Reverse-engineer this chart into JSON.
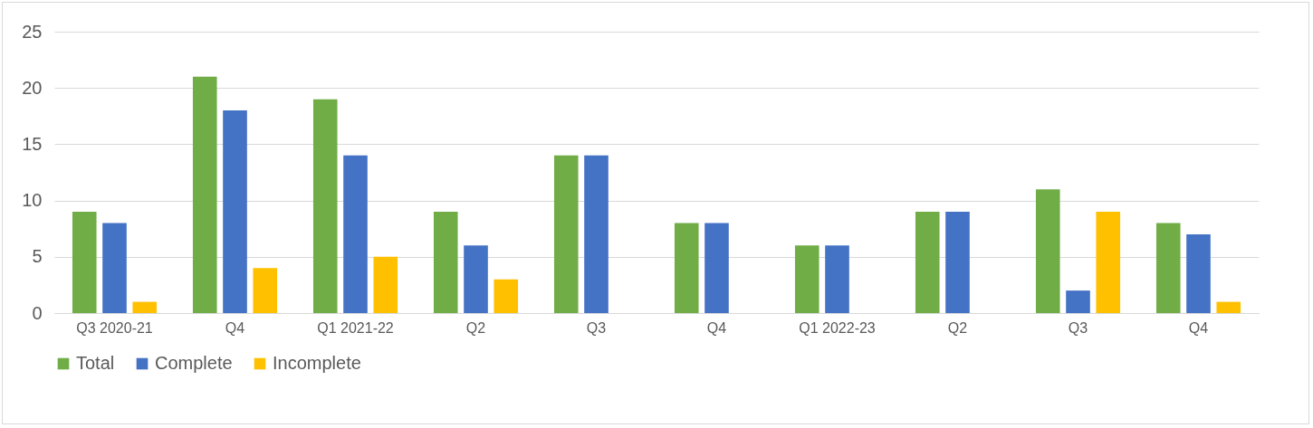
{
  "chart_data": {
    "type": "bar",
    "categories": [
      "Q3 2020-21",
      "Q4",
      "Q1 2021-22",
      "Q2",
      "Q3",
      "Q4",
      "Q1 2022-23",
      "Q2",
      "Q3",
      "Q4"
    ],
    "series": [
      {
        "name": "Total",
        "color": "#70ad47",
        "values": [
          9,
          21,
          19,
          9,
          14,
          8,
          6,
          9,
          11,
          8
        ]
      },
      {
        "name": "Complete",
        "color": "#4472c4",
        "values": [
          8,
          18,
          14,
          6,
          14,
          8,
          6,
          9,
          2,
          7
        ]
      },
      {
        "name": "Incomplete",
        "color": "#ffc000",
        "values": [
          1,
          4,
          5,
          3,
          null,
          null,
          null,
          null,
          9,
          1
        ]
      }
    ],
    "ylim": [
      0,
      25
    ],
    "yticks": [
      0,
      5,
      10,
      15,
      20,
      25
    ],
    "grid": "y",
    "legend": "bottom"
  }
}
